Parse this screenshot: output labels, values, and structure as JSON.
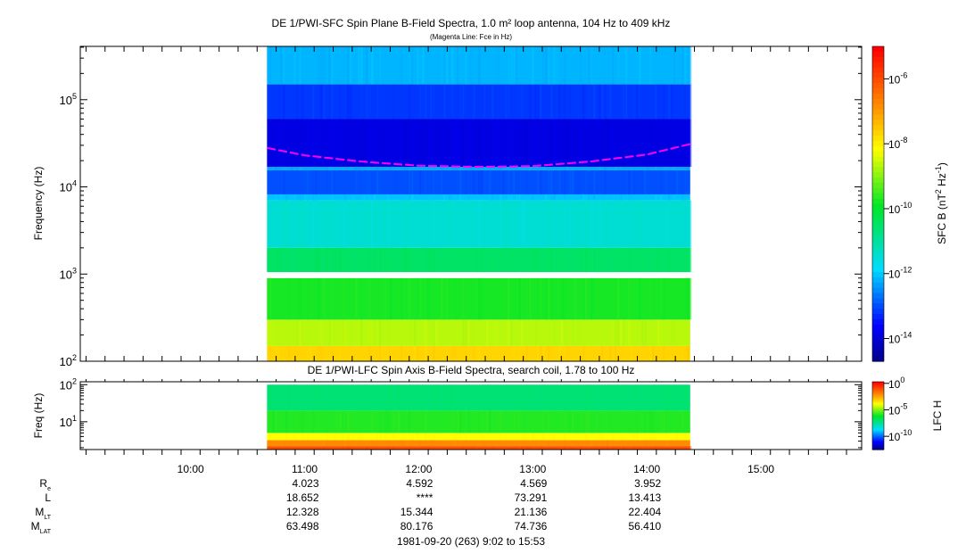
{
  "chart_data": [
    {
      "type": "heatmap",
      "title": "DE 1/PWI-SFC  Spin Plane B-Field Spectra, 1.0 m² loop antenna, 104 Hz to 409 kHz",
      "subtitle": "(Magenta Line: Fce in Hz)",
      "ylabel": "Frequency (Hz)",
      "yscale": "log",
      "ylim": [
        100,
        409000
      ],
      "yticks": [
        {
          "v": 100,
          "b": "10",
          "e": "2"
        },
        {
          "v": 1000,
          "b": "10",
          "e": "3"
        },
        {
          "v": 10000,
          "b": "10",
          "e": "4"
        },
        {
          "v": 100000,
          "b": "10",
          "e": "5"
        }
      ],
      "data_time_range_hours": [
        10.67,
        14.38
      ],
      "colorbar": {
        "label_main": "SFC B (nT",
        "label_sup1": "2",
        "label_mid": " Hz",
        "label_sup2": "-1",
        "label_end": ")",
        "range_log": [
          -14.7,
          -5.0
        ],
        "ticks": [
          {
            "v": -6,
            "b": "10",
            "e": "-6"
          },
          {
            "v": -8,
            "b": "10",
            "e": "-8"
          },
          {
            "v": -10,
            "b": "10",
            "e": "-10"
          },
          {
            "v": -12,
            "b": "10",
            "e": "-12"
          },
          {
            "v": -14,
            "b": "10",
            "e": "-14"
          }
        ]
      },
      "bands": [
        {
          "f": [
            100,
            150
          ],
          "log_power": -7.6
        },
        {
          "f": [
            150,
            300
          ],
          "log_power": -8.6
        },
        {
          "f": [
            300,
            900
          ],
          "log_power": -9.7
        },
        {
          "f": [
            1050,
            2000
          ],
          "log_power": -10.4
        },
        {
          "f": [
            2000,
            7000
          ],
          "log_power": -11.4
        },
        {
          "f": [
            7000,
            8200
          ],
          "log_power": -12.0
        },
        {
          "f": [
            8200,
            15500
          ],
          "log_power": -12.9
        },
        {
          "f": [
            15500,
            17000
          ],
          "log_power": -12.2
        },
        {
          "f": [
            17000,
            60000
          ],
          "log_power": -13.8
        },
        {
          "f": [
            60000,
            150000
          ],
          "log_power": -13.1
        },
        {
          "f": [
            150000,
            409000
          ],
          "log_power": -12.1
        }
      ],
      "fce_line": {
        "color": "#ff00ff",
        "points": [
          [
            10.67,
            28000
          ],
          [
            11.0,
            23000
          ],
          [
            11.5,
            19500
          ],
          [
            12.0,
            17500
          ],
          [
            12.5,
            17000
          ],
          [
            13.0,
            17300
          ],
          [
            13.5,
            19500
          ],
          [
            14.0,
            23500
          ],
          [
            14.38,
            31000
          ]
        ]
      }
    },
    {
      "type": "heatmap",
      "title": "DE 1/PWI-LFC  Spin Axis B-Field Spectra, search coil, 1.78 to 100 Hz",
      "ylabel": "Freq (Hz)",
      "yscale": "log",
      "ylim": [
        1.78,
        120
      ],
      "yticks": [
        {
          "v": 10,
          "b": "10",
          "e": "1"
        },
        {
          "v": 100,
          "b": "10",
          "e": "2"
        }
      ],
      "colorbar": {
        "label_main": "LFC H",
        "range_log": [
          -12.5,
          0.3
        ],
        "ticks": [
          {
            "v": 0,
            "b": "10",
            "e": "0"
          },
          {
            "v": -5,
            "b": "10",
            "e": "-5"
          },
          {
            "v": -10,
            "b": "10",
            "e": "-10"
          }
        ]
      },
      "bands": [
        {
          "f": [
            1.78,
            2.2
          ],
          "log_power": -1.0
        },
        {
          "f": [
            2.2,
            3.2
          ],
          "log_power": -2.0
        },
        {
          "f": [
            3.2,
            5.0
          ],
          "log_power": -3.8
        },
        {
          "f": [
            5.0,
            20
          ],
          "log_power": -5.8
        },
        {
          "f": [
            20,
            100
          ],
          "log_power": -7.0
        }
      ]
    }
  ],
  "x_axis": {
    "range_hours": [
      9.033,
      15.883
    ],
    "ticks": [
      {
        "v": 10,
        "label": "10:00"
      },
      {
        "v": 11,
        "label": "11:00"
      },
      {
        "v": 12,
        "label": "12:00"
      },
      {
        "v": 13,
        "label": "13:00"
      },
      {
        "v": 14,
        "label": "14:00"
      },
      {
        "v": 15,
        "label": "15:00"
      }
    ]
  },
  "ephemeris": {
    "rows": [
      {
        "label": "R",
        "sub": "e",
        "values": [
          "4.023",
          "4.592",
          "4.569",
          "3.952"
        ]
      },
      {
        "label": "L",
        "sub": "",
        "values": [
          "18.652",
          "****",
          "73.291",
          "13.413"
        ]
      },
      {
        "label": "M",
        "sub": "LT",
        "values": [
          "12.328",
          "15.344",
          "21.136",
          "22.404"
        ]
      },
      {
        "label": "M",
        "sub": "LAT",
        "values": [
          "63.498",
          "80.176",
          "74.736",
          "56.410"
        ]
      }
    ],
    "times": [
      11,
      12,
      13,
      14
    ]
  },
  "footer": "1981-09-20 (263) 9:02 to 15:53"
}
